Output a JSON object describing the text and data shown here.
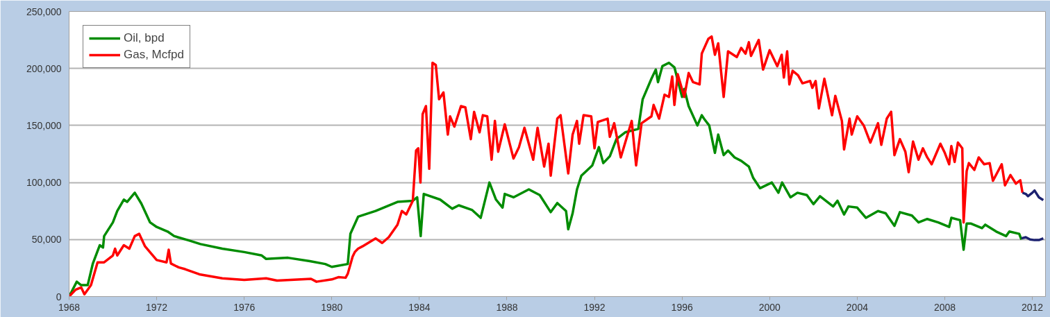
{
  "chart_data": {
    "type": "line",
    "xlim": [
      1968,
      2012.6
    ],
    "ylim": [
      0,
      250000
    ],
    "xticks": [
      1968,
      1972,
      1976,
      1980,
      1984,
      1988,
      1992,
      1996,
      2000,
      2004,
      2008,
      2012
    ],
    "yticks": [
      0,
      {
        "value": 50000,
        "label": "50,000"
      },
      {
        "value": 100000,
        "label": "100,000"
      },
      {
        "value": 150000,
        "label": "150,000"
      },
      {
        "value": 200000,
        "label": "200,000"
      },
      {
        "value": 250000,
        "label": "250,000"
      }
    ],
    "grid": "y",
    "legend": "top left",
    "series": [
      {
        "name": "Oil, bpd",
        "color": "#008c00",
        "x": [
          1968.0,
          1968.35,
          1968.55,
          1968.85,
          1969.08,
          1969.4,
          1969.55,
          1969.6,
          1970.0,
          1970.2,
          1970.5,
          1970.65,
          1971.0,
          1971.3,
          1971.7,
          1972.0,
          1972.5,
          1972.8,
          1973.5,
          1974.0,
          1975.0,
          1976.0,
          1976.8,
          1977.0,
          1978.0,
          1979.0,
          1979.7,
          1980.0,
          1980.73,
          1980.85,
          1981.2,
          1982.0,
          1983.0,
          1983.7,
          1983.9,
          1984.06,
          1984.2,
          1984.95,
          1985.5,
          1985.8,
          1986.4,
          1986.8,
          1987.2,
          1987.5,
          1987.8,
          1987.9,
          1988.3,
          1989.0,
          1989.5,
          1990.0,
          1990.3,
          1990.7,
          1990.8,
          1991.0,
          1991.2,
          1991.4,
          1991.9,
          1992.2,
          1992.4,
          1992.7,
          1993.0,
          1993.4,
          1994.0,
          1994.2,
          1994.6,
          1994.8,
          1994.9,
          1995.1,
          1995.4,
          1995.65,
          1996.0,
          1996.1,
          1996.3,
          1996.7,
          1996.9,
          1997.0,
          1997.24,
          1997.5,
          1997.65,
          1997.9,
          1998.1,
          1998.4,
          1998.7,
          1999.05,
          1999.25,
          1999.56,
          2000.1,
          2000.4,
          2000.57,
          2000.95,
          2001.27,
          2001.7,
          2002.0,
          2002.3,
          2002.9,
          2003.1,
          2003.4,
          2003.6,
          2004.0,
          2004.4,
          2004.95,
          2005.3,
          2005.7,
          2005.95,
          2006.5,
          2006.8,
          2007.2,
          2007.7,
          2008.2,
          2008.3,
          2008.7,
          2008.86,
          2009.0,
          2009.2,
          2009.7,
          2009.85,
          2010.35,
          2010.8,
          2010.95,
          2011.4,
          2011.5
        ],
        "values": [
          0,
          13000,
          10000,
          10000,
          28600,
          45000,
          43000,
          53000,
          65000,
          75000,
          85000,
          83000,
          91000,
          81500,
          65000,
          61000,
          57000,
          53000,
          49000,
          46000,
          42000,
          39000,
          36000,
          33000,
          34000,
          31000,
          28500,
          26000,
          28500,
          55000,
          70000,
          75000,
          83000,
          84000,
          87000,
          53000,
          90000,
          85000,
          77000,
          80000,
          76000,
          69000,
          100000,
          85000,
          78000,
          90000,
          87000,
          94000,
          89000,
          74000,
          82000,
          75000,
          59000,
          73000,
          94000,
          106000,
          115000,
          131000,
          117000,
          123000,
          138000,
          144000,
          147000,
          173000,
          191000,
          199000,
          188000,
          202000,
          205000,
          201000,
          175000,
          182000,
          167000,
          150000,
          159000,
          156000,
          150000,
          126000,
          142000,
          124000,
          128000,
          122000,
          119000,
          114000,
          104000,
          95000,
          100000,
          91000,
          100000,
          87000,
          91000,
          89000,
          81000,
          88000,
          79000,
          84000,
          72000,
          79000,
          78000,
          69000,
          75000,
          73000,
          62000,
          74000,
          71000,
          65000,
          68000,
          65000,
          61000,
          69000,
          67000,
          41000,
          64000,
          64000,
          60000,
          63000,
          57000,
          53000,
          57000,
          55000,
          50000
        ]
      },
      {
        "name": "Gas, Mcfpd",
        "color": "#ff0000",
        "x": [
          1968.0,
          1968.3,
          1968.55,
          1968.7,
          1969.0,
          1969.3,
          1969.6,
          1970.0,
          1970.1,
          1970.2,
          1970.5,
          1970.75,
          1971.0,
          1971.2,
          1971.47,
          1972.0,
          1972.45,
          1972.55,
          1972.65,
          1973.0,
          1973.3,
          1973.95,
          1975.0,
          1976.0,
          1977.0,
          1977.5,
          1979.05,
          1979.3,
          1980.0,
          1980.3,
          1980.63,
          1980.73,
          1980.95,
          1981.05,
          1981.2,
          1981.4,
          1982.0,
          1982.3,
          1982.6,
          1983.0,
          1983.2,
          1983.4,
          1983.7,
          1983.85,
          1983.95,
          1984.05,
          1984.15,
          1984.3,
          1984.45,
          1984.6,
          1984.75,
          1984.9,
          1985.1,
          1985.3,
          1985.4,
          1985.6,
          1985.9,
          1986.1,
          1986.35,
          1986.5,
          1986.75,
          1986.9,
          1987.1,
          1987.3,
          1987.45,
          1987.6,
          1987.9,
          1988.3,
          1988.55,
          1988.8,
          1989.2,
          1989.4,
          1989.7,
          1989.9,
          1990.0,
          1990.3,
          1990.45,
          1990.8,
          1991.0,
          1991.2,
          1991.3,
          1991.5,
          1991.85,
          1992.0,
          1992.15,
          1992.6,
          1992.7,
          1992.9,
          1993.2,
          1993.7,
          1993.9,
          1994.15,
          1994.6,
          1994.7,
          1994.95,
          1995.2,
          1995.4,
          1995.55,
          1995.65,
          1995.8,
          1996.1,
          1996.3,
          1996.5,
          1996.8,
          1996.9,
          1997.2,
          1997.35,
          1997.5,
          1997.65,
          1997.9,
          1998.1,
          1998.5,
          1998.7,
          1998.9,
          1999.05,
          1999.15,
          1999.5,
          1999.7,
          2000.0,
          2000.35,
          2000.55,
          2000.65,
          2000.8,
          2000.9,
          2001.05,
          2001.3,
          2001.5,
          2001.85,
          2001.95,
          2002.1,
          2002.25,
          2002.5,
          2002.85,
          2003.0,
          2003.3,
          2003.4,
          2003.65,
          2003.75,
          2004.0,
          2004.3,
          2004.6,
          2004.95,
          2005.1,
          2005.35,
          2005.55,
          2005.7,
          2005.95,
          2006.2,
          2006.35,
          2006.55,
          2006.8,
          2007.0,
          2007.2,
          2007.4,
          2007.8,
          2008.0,
          2008.2,
          2008.3,
          2008.45,
          2008.6,
          2008.8,
          2008.86,
          2009.0,
          2009.1,
          2009.35,
          2009.55,
          2009.8,
          2010.05,
          2010.2,
          2010.6,
          2010.75,
          2011.0,
          2011.25,
          2011.45,
          2011.55
        ],
        "values": [
          0,
          6000,
          8000,
          2000,
          10000,
          30000,
          30000,
          36000,
          42000,
          36000,
          45000,
          42000,
          53000,
          55000,
          44000,
          32000,
          30000,
          41000,
          29000,
          25600,
          24000,
          19500,
          16000,
          14600,
          16000,
          14000,
          15500,
          13000,
          15000,
          17000,
          16500,
          20000,
          35000,
          39000,
          42000,
          44000,
          51000,
          47000,
          52000,
          63000,
          75000,
          72000,
          84000,
          128000,
          130000,
          100000,
          160000,
          167000,
          112000,
          205000,
          203000,
          173000,
          179000,
          142000,
          158000,
          149000,
          167000,
          166000,
          138000,
          162000,
          144000,
          159000,
          158000,
          120000,
          154000,
          127000,
          151000,
          121000,
          131000,
          148000,
          120000,
          148000,
          114000,
          134000,
          106000,
          156000,
          159000,
          108000,
          142000,
          154000,
          134000,
          159000,
          158000,
          130000,
          153000,
          156000,
          140000,
          152000,
          122000,
          154000,
          115000,
          152000,
          158000,
          168000,
          156000,
          177000,
          175000,
          193000,
          168000,
          195000,
          175000,
          196000,
          188000,
          186000,
          213000,
          226000,
          228000,
          212000,
          222000,
          175000,
          215000,
          210000,
          218000,
          213000,
          223000,
          211000,
          225000,
          199000,
          216000,
          202000,
          212000,
          192000,
          215000,
          186000,
          198000,
          194000,
          187000,
          189000,
          183000,
          189000,
          165000,
          191000,
          159000,
          176000,
          154000,
          129000,
          156000,
          142000,
          158000,
          150000,
          135000,
          152000,
          133000,
          156000,
          162000,
          124000,
          138000,
          127000,
          109000,
          136000,
          120000,
          130000,
          122000,
          116000,
          134000,
          126000,
          116000,
          132000,
          118000,
          135000,
          130000,
          65000,
          110000,
          117000,
          111000,
          122000,
          116000,
          117000,
          101500,
          116000,
          97500,
          106500,
          99000,
          102000,
          91000
        ]
      },
      {
        "color": "#1c2270",
        "x": [
          2011.55,
          2011.7,
          2011.8,
          2012.0,
          2012.1,
          2012.3,
          2012.5
        ],
        "values": [
          91000,
          90000,
          88000,
          91000,
          93000,
          87000,
          84500
        ]
      },
      {
        "color": "#1c2270",
        "x": [
          2011.5,
          2011.7,
          2011.9,
          2012.1,
          2012.3,
          2012.5
        ],
        "values": [
          51000,
          52000,
          50000,
          49500,
          49500,
          51000
        ]
      }
    ]
  }
}
